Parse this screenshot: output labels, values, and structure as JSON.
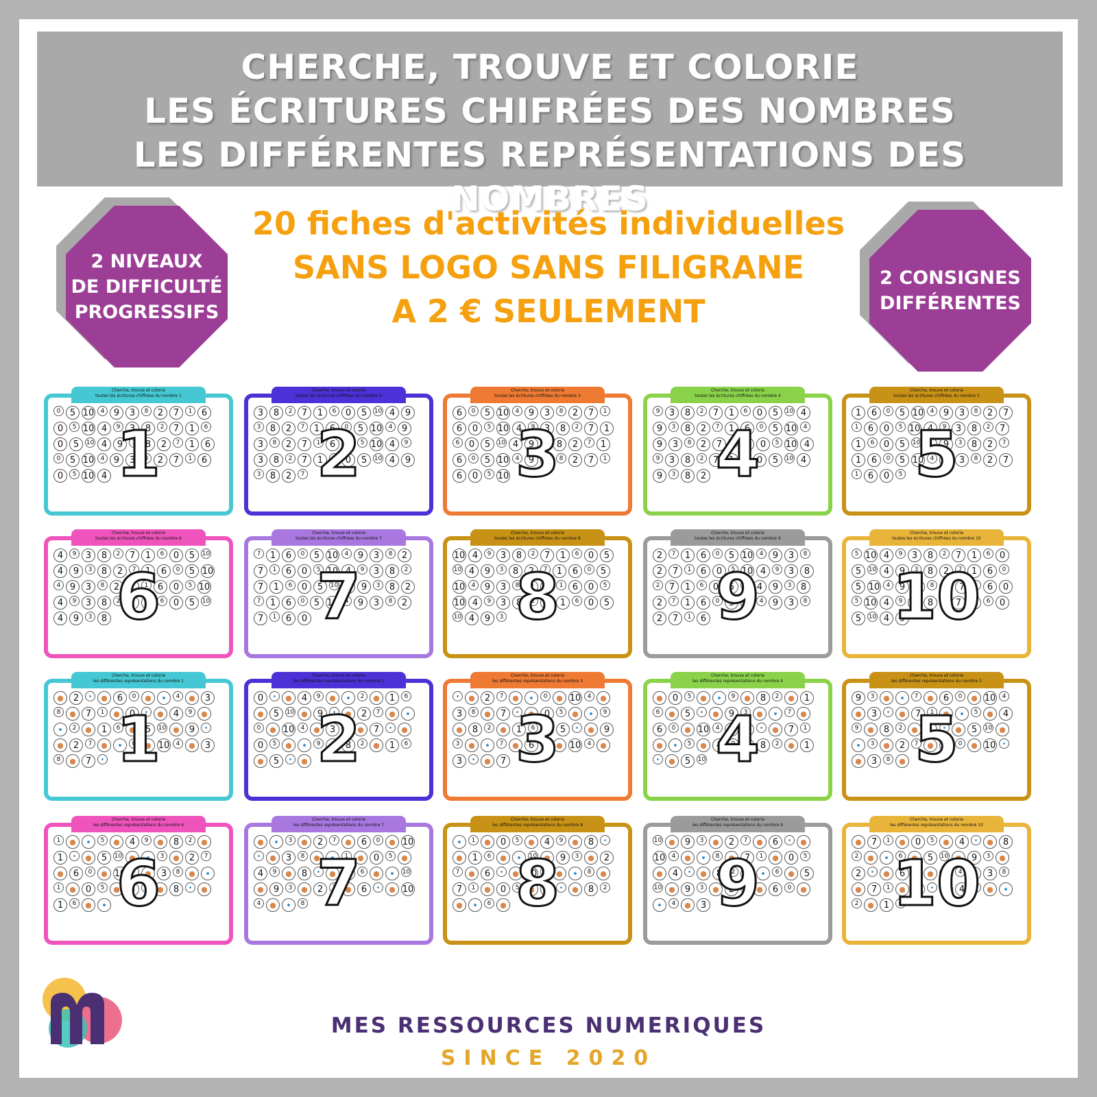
{
  "banner": {
    "line1": "CHERCHE, TROUVE ET COLORIE",
    "line2": "LES ÉCRITURES CHIFRÉES DES NOMBRES",
    "line3": "LES DIFFÉRENTES REPRÉSENTATIONS DES NOMBRES"
  },
  "promo": {
    "line1": "20 fiches d'activités individuelles",
    "line2": "SANS LOGO SANS FILIGRANE",
    "line3": "A 2 € SEULEMENT"
  },
  "badge_left": {
    "line1": "2 NIVEAUX",
    "line2": "DE DIFFICULTÉ",
    "line3": "PROGRESSIFS"
  },
  "badge_right": {
    "line1": "2 CONSIGNES",
    "line2": "DIFFÉRENTES"
  },
  "sheet_title": "Cherche, trouve et colorie",
  "cards": [
    {
      "number": "1",
      "subtitle": "toutes les écritures chiffrées du nombre 1",
      "color": "#45c8d3",
      "type": "digits"
    },
    {
      "number": "2",
      "subtitle": "toutes les écritures chiffrées du nombre 2",
      "color": "#4b31d6",
      "type": "digits"
    },
    {
      "number": "3",
      "subtitle": "toutes les écritures chiffrées du nombre 3",
      "color": "#ee7a33",
      "type": "digits"
    },
    {
      "number": "4",
      "subtitle": "toutes les écritures chiffrées du nombre 4",
      "color": "#8ad24a",
      "type": "digits"
    },
    {
      "number": "5",
      "subtitle": "toutes les écritures chiffrées du nombre 5",
      "color": "#c89216",
      "type": "digits"
    },
    {
      "number": "6",
      "subtitle": "toutes les écritures chiffrées du nombre 6",
      "color": "#ee54bc",
      "type": "digits"
    },
    {
      "number": "7",
      "subtitle": "toutes les écritures chiffrées du nombre 7",
      "color": "#a878e0",
      "type": "digits"
    },
    {
      "number": "8",
      "subtitle": "toutes les écritures chiffrées du nombre 8",
      "color": "#c89216",
      "type": "digits"
    },
    {
      "number": "9",
      "subtitle": "toutes les écritures chiffrées du nombre 9",
      "color": "#9b9b9b",
      "type": "digits"
    },
    {
      "number": "10",
      "subtitle": "toutes les écritures chiffrées du nombre 10",
      "color": "#e9b43a",
      "type": "digits"
    },
    {
      "number": "1",
      "subtitle": "les différentes représentations du nombre 1",
      "color": "#45c8d3",
      "type": "mixed"
    },
    {
      "number": "2",
      "subtitle": "les différentes représentations du nombre 2",
      "color": "#4b31d6",
      "type": "mixed"
    },
    {
      "number": "3",
      "subtitle": "les différentes représentations du nombre 3",
      "color": "#ee7a33",
      "type": "mixed"
    },
    {
      "number": "4",
      "subtitle": "les différentes représentations du nombre 4",
      "color": "#8ad24a",
      "type": "mixed"
    },
    {
      "number": "5",
      "subtitle": "les différentes représentations du nombre 5",
      "color": "#c89216",
      "type": "mixed"
    },
    {
      "number": "6",
      "subtitle": "les différentes représentations du nombre 6",
      "color": "#ee54bc",
      "type": "mixed"
    },
    {
      "number": "7",
      "subtitle": "les différentes représentations du nombre 7",
      "color": "#a878e0",
      "type": "mixed"
    },
    {
      "number": "8",
      "subtitle": "les différentes représentations du nombre 8",
      "color": "#c89216",
      "type": "mixed"
    },
    {
      "number": "9",
      "subtitle": "les différentes représentations du nombre 9",
      "color": "#9b9b9b",
      "type": "mixed"
    },
    {
      "number": "10",
      "subtitle": "les différentes représentations du nombre 10",
      "color": "#e9b43a",
      "type": "mixed"
    }
  ],
  "brand": {
    "name": "MES RESSOURCES NUMERIQUES",
    "since": "SINCE 2020"
  },
  "colors": {
    "banner_bg": "#a9a9a9",
    "promo_orange": "#f5a00f",
    "badge_purple": "#9c3d96",
    "brand_purple": "#4a2f72",
    "brand_gold": "#e3a62a"
  }
}
